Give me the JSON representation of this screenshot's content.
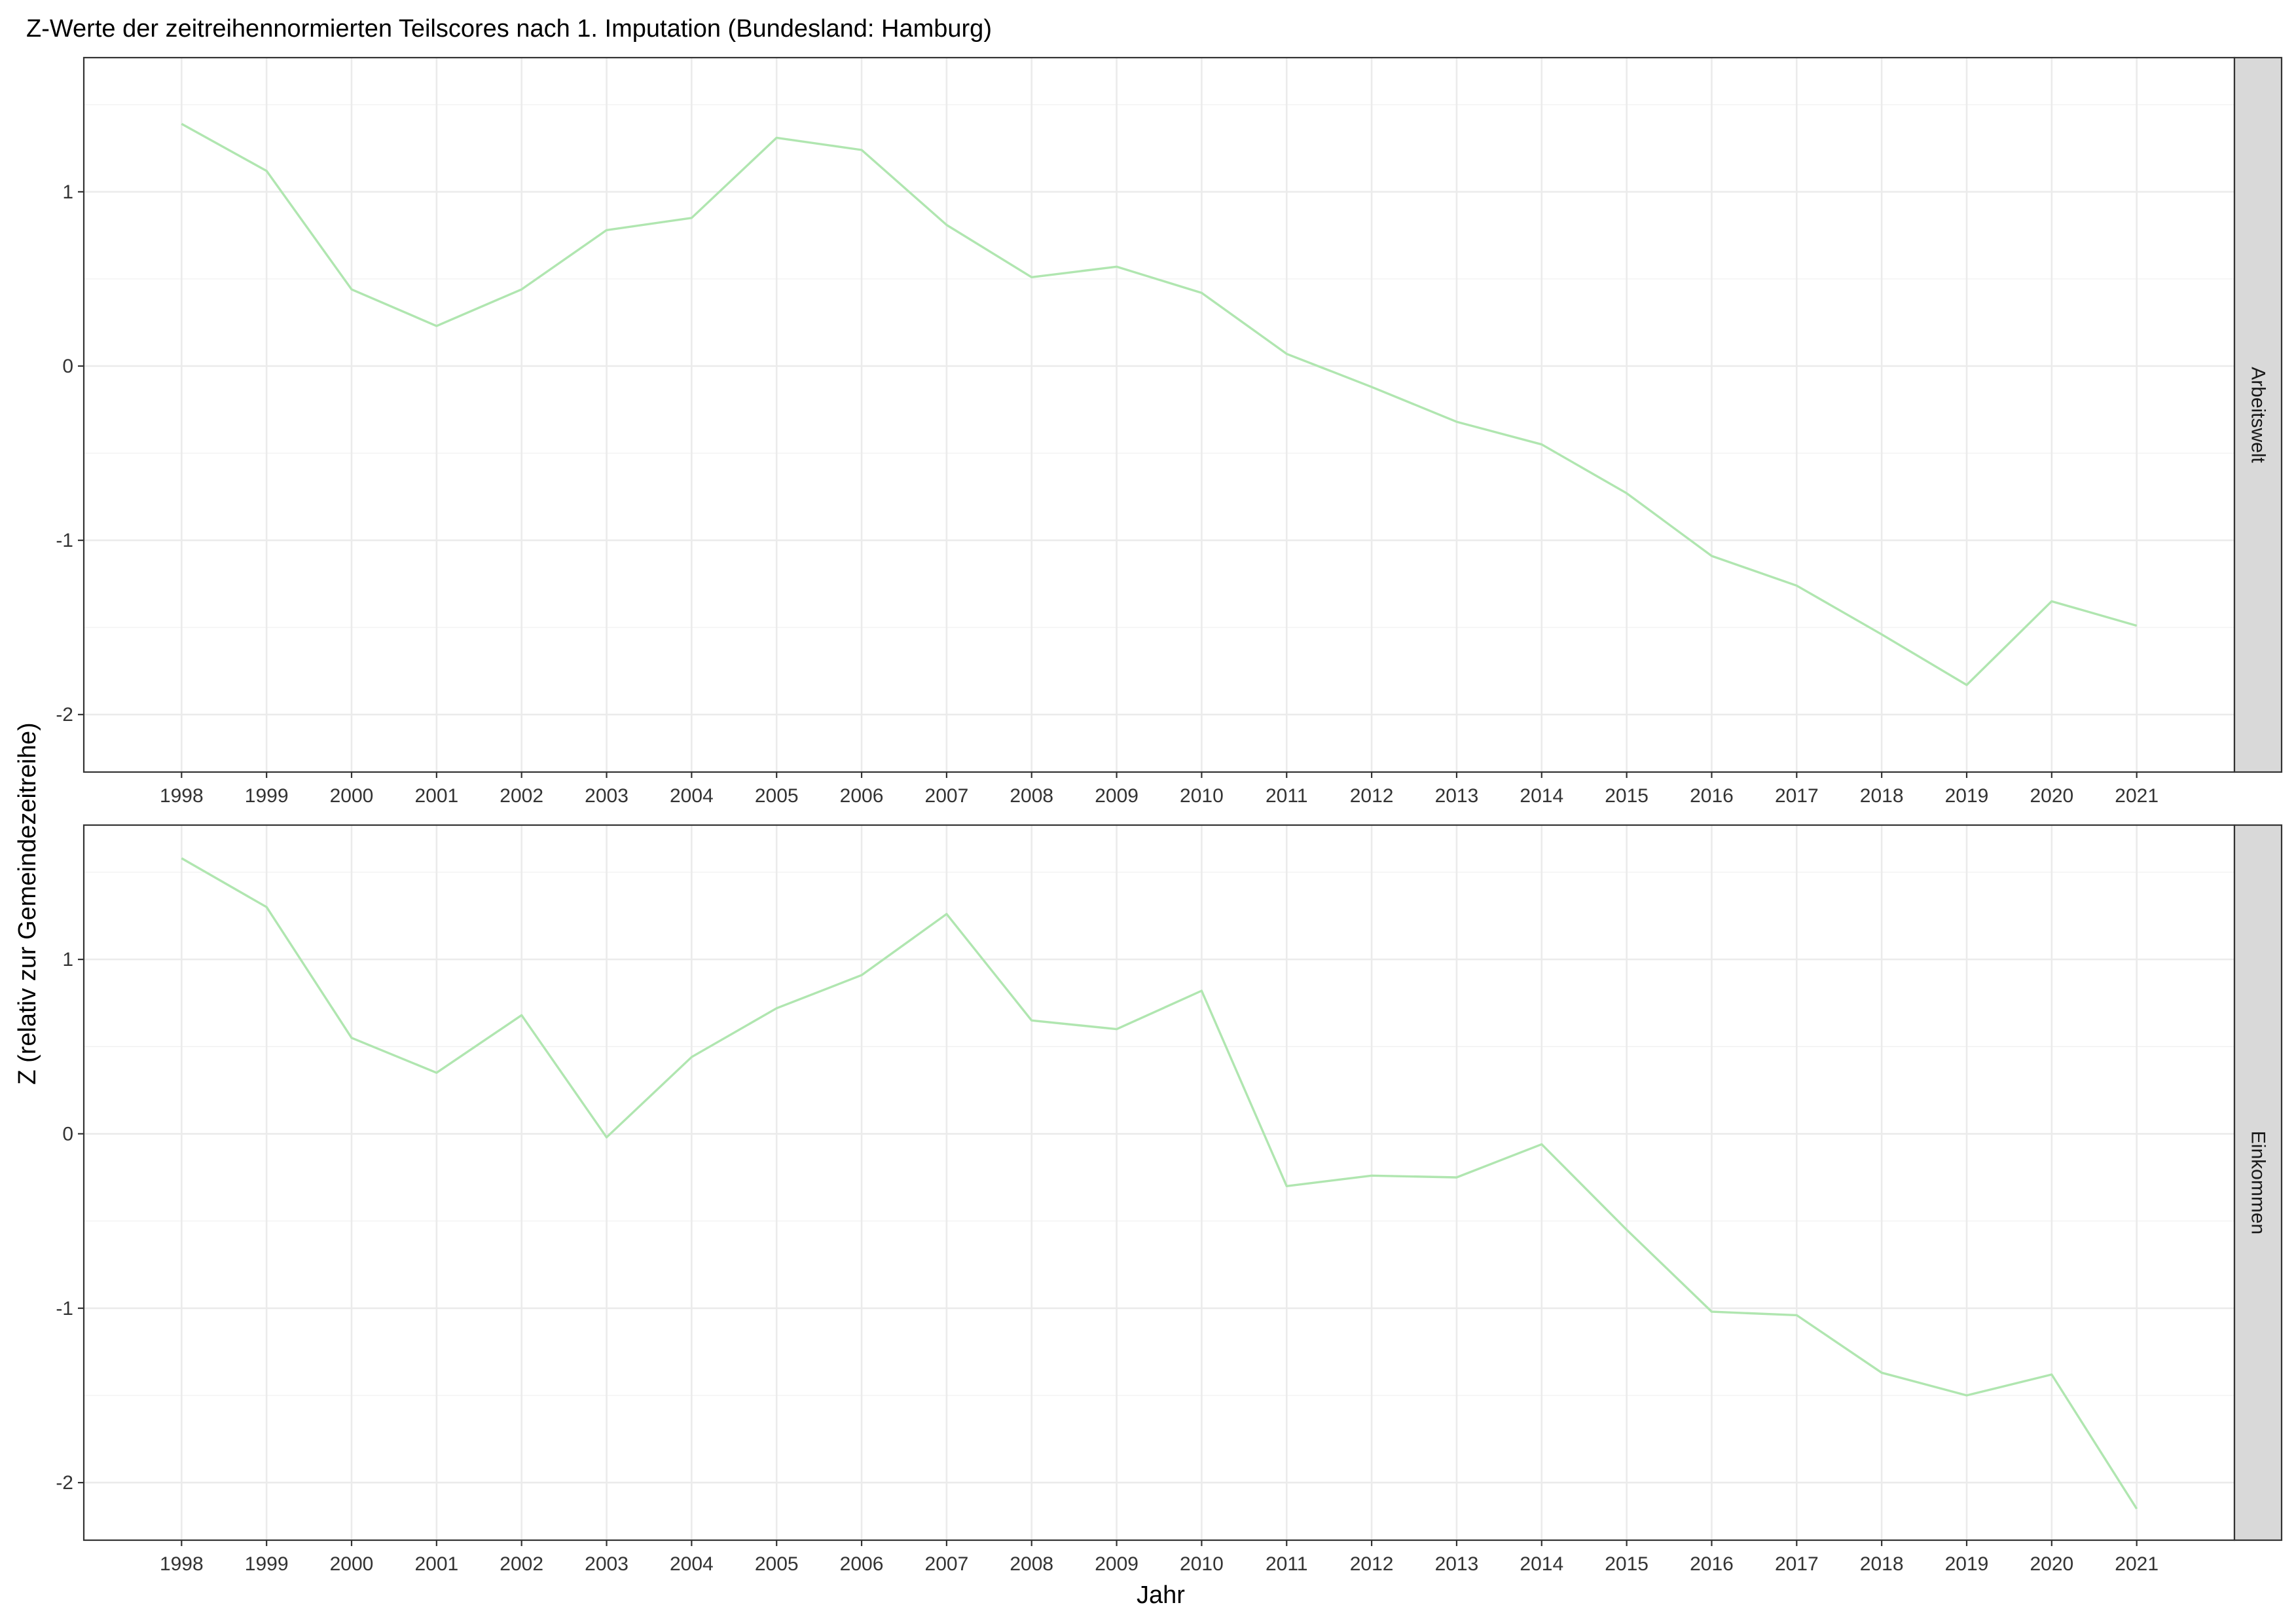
{
  "chart_data": {
    "type": "line",
    "title": "Z-Werte der zeitreihennormierten Teilscores nach 1. Imputation (Bundesland: Hamburg)",
    "xlabel": "Jahr",
    "ylabel": "Z (relativ zur Gemeindezeitreihe)",
    "x": [
      1998,
      1999,
      2000,
      2001,
      2002,
      2003,
      2004,
      2005,
      2006,
      2007,
      2008,
      2009,
      2010,
      2011,
      2012,
      2013,
      2014,
      2015,
      2016,
      2017,
      2018,
      2019,
      2020,
      2021
    ],
    "y_ticks": [
      -2,
      -1,
      0,
      1
    ],
    "ylim": [
      -2.33,
      1.77
    ],
    "grid": true,
    "line_color": "#b0e6b0",
    "facets": [
      {
        "label": "Arbeitswelt",
        "values": [
          1.39,
          1.12,
          0.44,
          0.23,
          0.44,
          0.78,
          0.85,
          1.31,
          1.24,
          0.81,
          0.51,
          0.57,
          0.42,
          0.07,
          -0.12,
          -0.32,
          -0.45,
          -0.73,
          -1.09,
          -1.26,
          -1.54,
          -1.83,
          -1.35,
          -1.49
        ]
      },
      {
        "label": "Einkommen",
        "values": [
          1.58,
          1.3,
          0.55,
          0.35,
          0.68,
          -0.02,
          0.44,
          0.72,
          0.91,
          1.26,
          0.65,
          0.6,
          0.82,
          -0.3,
          -0.24,
          -0.25,
          -0.06,
          -0.55,
          -1.02,
          -1.04,
          -1.37,
          -1.5,
          -1.38,
          -2.15
        ]
      }
    ]
  }
}
